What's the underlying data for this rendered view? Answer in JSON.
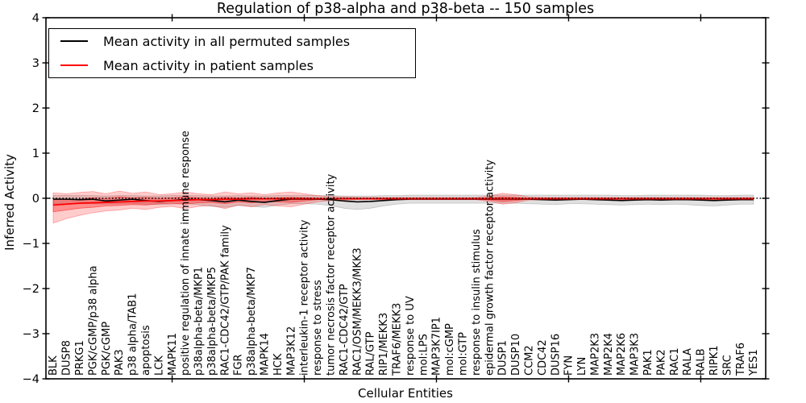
{
  "title": "Regulation of p38-alpha and p38-beta -- 150 samples",
  "axes": {
    "xlabel": "Cellular Entities",
    "ylabel": "Inferred Activity"
  },
  "legend": {
    "items": [
      {
        "label": "Mean activity in all permuted samples",
        "color": "#000000"
      },
      {
        "label": "Mean activity in patient samples",
        "color": "#ff0000"
      }
    ]
  },
  "chart_data": {
    "type": "line",
    "title": "Regulation of p38-alpha and p38-beta -- 150 samples",
    "xlabel": "Cellular Entities",
    "ylabel": "Inferred Activity",
    "ylim": [
      -4,
      4
    ],
    "yticks": [
      4,
      3,
      2,
      1,
      0,
      -1,
      -2,
      -3,
      -4
    ],
    "x_major_tick_indices": [
      9,
      19,
      29,
      39,
      49
    ],
    "grid": false,
    "zero_line_style": "dotted",
    "legend_position": "upper left",
    "categories": [
      "BLK",
      "DUSP8",
      "PRKG1",
      "PGK/cGMP/p38 alpha",
      "PGK/cGMP",
      "PAK3",
      "p38 alpha/TAB1",
      "apoptosis",
      "LCK",
      "MAPK11",
      "positive regulation of innate immune response",
      "p38alpha-beta/MKP1",
      "p38alpha-beta/MKP5",
      "RAC1-CDC42/GTP/PAK family",
      "FGR",
      "p38alpha-beta/MKP7",
      "MAPK14",
      "HCK",
      "MAP3K12",
      "interleukin-1 receptor activity",
      "response to stress",
      "tumor necrosis factor receptor activity",
      "RAC1-CDC42/GTP",
      "RAC1/OSM/MEKK3/MKK3",
      "RAL/GTP",
      "RIP1/MEKK3",
      "TRAF6/MEKK3",
      "response to UV",
      "mol:LPS",
      "MAP3K7IP1",
      "mol:cGMP",
      "mol:GTP",
      "response to insulin stimulus",
      "epidermal growth factor receptor activity",
      "DUSP1",
      "DUSP10",
      "CCM2",
      "CDC42",
      "DUSP16",
      "FYN",
      "LYN",
      "MAP2K3",
      "MAP2K4",
      "MAP2K6",
      "MAP3K3",
      "PAK1",
      "PAK2",
      "RAC1",
      "RALA",
      "RALB",
      "RIPK1",
      "SRC",
      "TRAF6",
      "YES1"
    ],
    "series": [
      {
        "name": "Mean activity in all permuted samples",
        "color": "#000000",
        "values": [
          -0.02,
          -0.02,
          -0.03,
          -0.02,
          -0.06,
          -0.04,
          -0.02,
          -0.05,
          -0.07,
          -0.05,
          -0.02,
          -0.03,
          -0.05,
          -0.08,
          -0.04,
          -0.07,
          -0.09,
          -0.05,
          -0.02,
          -0.02,
          -0.02,
          -0.03,
          -0.06,
          -0.08,
          -0.07,
          -0.05,
          -0.03,
          -0.02,
          -0.02,
          -0.02,
          -0.02,
          -0.02,
          -0.02,
          -0.02,
          -0.02,
          -0.02,
          -0.02,
          -0.03,
          -0.04,
          -0.03,
          -0.02,
          -0.03,
          -0.04,
          -0.05,
          -0.04,
          -0.03,
          -0.04,
          -0.03,
          -0.03,
          -0.04,
          -0.05,
          -0.04,
          -0.03,
          -0.03
        ]
      },
      {
        "name": "Mean activity in patient samples",
        "color": "#ff0000",
        "values": [
          -0.15,
          -0.13,
          -0.11,
          -0.1,
          -0.09,
          -0.08,
          -0.07,
          -0.06,
          -0.06,
          -0.05,
          -0.04,
          -0.03,
          -0.03,
          -0.02,
          -0.02,
          -0.01,
          -0.01,
          -0.01,
          -0.01,
          -0.01,
          -0.01,
          -0.01,
          -0.01,
          -0.01,
          -0.01,
          -0.01,
          -0.01,
          -0.01,
          -0.01,
          -0.01,
          -0.01,
          -0.01,
          -0.01,
          -0.01,
          -0.01,
          -0.01,
          -0.01,
          -0.01,
          -0.01,
          -0.01,
          -0.01,
          -0.01,
          -0.01,
          -0.01,
          -0.01,
          -0.01,
          -0.01,
          -0.01,
          -0.01,
          -0.01,
          -0.01,
          -0.01,
          -0.01,
          -0.01
        ]
      }
    ],
    "bands": [
      {
        "name": "permuted-std-band",
        "color": "#000000",
        "opacity": 0.12,
        "upper": [
          0.06,
          0.06,
          0.06,
          0.06,
          0.05,
          0.06,
          0.06,
          0.05,
          0.05,
          0.06,
          0.06,
          0.06,
          0.05,
          0.05,
          0.06,
          0.05,
          0.05,
          0.06,
          0.06,
          0.06,
          0.06,
          0.06,
          0.05,
          0.05,
          0.05,
          0.06,
          0.06,
          0.07,
          0.07,
          0.07,
          0.07,
          0.07,
          0.07,
          0.07,
          0.07,
          0.07,
          0.07,
          0.07,
          0.07,
          0.07,
          0.07,
          0.07,
          0.07,
          0.06,
          0.06,
          0.07,
          0.07,
          0.07,
          0.07,
          0.07,
          0.06,
          0.06,
          0.07,
          0.07
        ],
        "lower": [
          -0.12,
          -0.12,
          -0.12,
          -0.12,
          -0.13,
          -0.12,
          -0.12,
          -0.13,
          -0.14,
          -0.13,
          -0.12,
          -0.14,
          -0.18,
          -0.2,
          -0.16,
          -0.18,
          -0.2,
          -0.15,
          -0.12,
          -0.12,
          -0.13,
          -0.16,
          -0.22,
          -0.25,
          -0.22,
          -0.17,
          -0.13,
          -0.11,
          -0.11,
          -0.11,
          -0.11,
          -0.11,
          -0.11,
          -0.11,
          -0.11,
          -0.11,
          -0.12,
          -0.13,
          -0.14,
          -0.12,
          -0.12,
          -0.13,
          -0.14,
          -0.15,
          -0.14,
          -0.13,
          -0.14,
          -0.13,
          -0.14,
          -0.16,
          -0.17,
          -0.15,
          -0.13,
          -0.13
        ]
      },
      {
        "name": "patient-std-band-outer",
        "color": "#ff0000",
        "opacity": 0.2,
        "upper": [
          0.12,
          0.1,
          0.13,
          0.15,
          0.1,
          0.16,
          0.11,
          0.14,
          0.08,
          0.1,
          0.14,
          0.1,
          0.08,
          0.14,
          0.1,
          0.12,
          0.08,
          0.12,
          0.14,
          0.1,
          0.06,
          0.04,
          0.03,
          0.02,
          0.02,
          0.02,
          0.02,
          0.02,
          0.02,
          0.02,
          0.02,
          0.02,
          0.02,
          0.05,
          0.11,
          0.08,
          0.03,
          0.02,
          0.02,
          0.02,
          0.02,
          0.02,
          0.02,
          0.02,
          0.02,
          0.02,
          0.02,
          0.02,
          0.02,
          0.02,
          0.02,
          0.02,
          0.02,
          0.02
        ],
        "lower": [
          -0.55,
          -0.45,
          -0.38,
          -0.32,
          -0.28,
          -0.26,
          -0.22,
          -0.25,
          -0.2,
          -0.18,
          -0.23,
          -0.18,
          -0.16,
          -0.23,
          -0.15,
          -0.19,
          -0.14,
          -0.17,
          -0.19,
          -0.13,
          -0.08,
          -0.05,
          -0.04,
          -0.03,
          -0.03,
          -0.03,
          -0.03,
          -0.03,
          -0.03,
          -0.03,
          -0.03,
          -0.03,
          -0.03,
          -0.07,
          -0.13,
          -0.1,
          -0.04,
          -0.03,
          -0.03,
          -0.03,
          -0.03,
          -0.03,
          -0.03,
          -0.03,
          -0.03,
          -0.03,
          -0.03,
          -0.03,
          -0.03,
          -0.03,
          -0.03,
          -0.03,
          -0.03,
          -0.03
        ]
      },
      {
        "name": "patient-std-band-inner",
        "color": "#ff0000",
        "opacity": 0.3,
        "upper": [
          -0.03,
          -0.03,
          -0.02,
          0.01,
          0.0,
          0.03,
          0.01,
          0.02,
          0.0,
          0.01,
          0.03,
          0.01,
          0.0,
          0.02,
          0.01,
          0.02,
          0.0,
          0.01,
          0.02,
          0.01,
          0.0,
          0.0,
          0.0,
          0.0,
          0.0,
          0.0,
          0.0,
          0.0,
          0.0,
          0.0,
          0.0,
          0.0,
          0.0,
          0.01,
          0.03,
          0.02,
          0.0,
          0.0,
          0.0,
          0.0,
          0.0,
          0.0,
          0.0,
          0.0,
          0.0,
          0.0,
          0.0,
          0.0,
          0.0,
          0.0,
          0.0,
          0.0,
          0.0,
          0.0
        ],
        "lower": [
          -0.3,
          -0.26,
          -0.22,
          -0.2,
          -0.17,
          -0.16,
          -0.14,
          -0.15,
          -0.12,
          -0.11,
          -0.13,
          -0.1,
          -0.09,
          -0.12,
          -0.08,
          -0.1,
          -0.07,
          -0.08,
          -0.09,
          -0.06,
          -0.03,
          -0.02,
          -0.02,
          -0.02,
          -0.02,
          -0.02,
          -0.02,
          -0.02,
          -0.02,
          -0.02,
          -0.02,
          -0.02,
          -0.02,
          -0.04,
          -0.07,
          -0.05,
          -0.02,
          -0.02,
          -0.02,
          -0.02,
          -0.02,
          -0.02,
          -0.02,
          -0.02,
          -0.02,
          -0.02,
          -0.02,
          -0.02,
          -0.02,
          -0.02,
          -0.02,
          -0.02,
          -0.02,
          -0.02
        ]
      }
    ]
  }
}
